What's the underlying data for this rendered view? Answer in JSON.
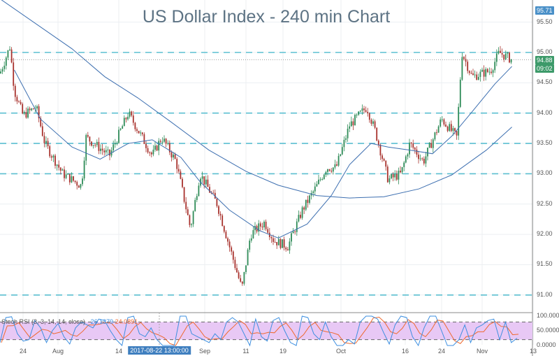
{
  "chart_data": [
    {
      "type": "candlestick",
      "title": "US Dollar Index - 240 min Chart",
      "ylim": [
        90.8,
        95.87
      ],
      "y_ticks": [
        "95.50",
        "95.00",
        "94.50",
        "94.00",
        "93.50",
        "93.00",
        "92.50",
        "92.00",
        "91.50",
        "91.00"
      ],
      "x_ticks": [
        {
          "label": "24",
          "date": "2017-07-24"
        },
        {
          "label": "Aug",
          "date": "2017-08-01"
        },
        {
          "label": "14",
          "date": "2017-08-14"
        },
        {
          "label": "Sep",
          "date": "2017-09-01"
        },
        {
          "label": "11",
          "date": "2017-09-11"
        },
        {
          "label": "19",
          "date": "2017-09-19"
        },
        {
          "label": "Oct",
          "date": "2017-10-01"
        },
        {
          "label": "16",
          "date": "2017-10-16"
        },
        {
          "label": "24",
          "date": "2017-10-24"
        },
        {
          "label": "Nov",
          "date": "2017-11-01"
        },
        {
          "label": "13",
          "date": "2017-11-13"
        }
      ],
      "crosshair_label": "2017-08-22 13:00:00",
      "horizontal_levels": [
        95.0,
        94.0,
        93.5,
        93.0,
        91.0
      ],
      "last_price": "94.88",
      "countdown": "09:02",
      "high_marker": "95.71",
      "price_path": [
        [
          "2017-07-19",
          94.71
        ],
        [
          "2017-07-21",
          95.1
        ],
        [
          "2017-07-22",
          94.37
        ],
        [
          "2017-07-24",
          93.96
        ],
        [
          "2017-07-27",
          94.1
        ],
        [
          "2017-07-29",
          93.5
        ],
        [
          "2017-08-02",
          93.0
        ],
        [
          "2017-08-06",
          92.8
        ],
        [
          "2017-08-07",
          93.6
        ],
        [
          "2017-08-12",
          93.3
        ],
        [
          "2017-08-16",
          94.0
        ],
        [
          "2017-08-21",
          93.3
        ],
        [
          "2017-08-23",
          93.6
        ],
        [
          "2017-08-26",
          93.2
        ],
        [
          "2017-08-29",
          92.1
        ],
        [
          "2017-08-31",
          93.0
        ],
        [
          "2017-09-04",
          92.5
        ],
        [
          "2017-09-10",
          91.1
        ],
        [
          "2017-09-12",
          92.0
        ],
        [
          "2017-09-15",
          92.2
        ],
        [
          "2017-09-17",
          91.9
        ],
        [
          "2017-09-20",
          91.8
        ],
        [
          "2017-09-23",
          92.4
        ],
        [
          "2017-09-26",
          92.8
        ],
        [
          "2017-09-28",
          93.1
        ],
        [
          "2017-09-30",
          93.1
        ],
        [
          "2017-10-03",
          93.8
        ],
        [
          "2017-10-07",
          94.1
        ],
        [
          "2017-10-09",
          93.7
        ],
        [
          "2017-10-12",
          92.9
        ],
        [
          "2017-10-15",
          93.0
        ],
        [
          "2017-10-17",
          93.5
        ],
        [
          "2017-10-20",
          93.2
        ],
        [
          "2017-10-24",
          93.9
        ],
        [
          "2017-10-27",
          93.6
        ],
        [
          "2017-10-28",
          95.0
        ],
        [
          "2017-10-30",
          94.6
        ],
        [
          "2017-11-03",
          94.7
        ],
        [
          "2017-11-05",
          95.0
        ],
        [
          "2017-11-08",
          94.88
        ]
      ],
      "series": [
        {
          "type": "line",
          "color": "#3d6fb0",
          "values": [
            [
              "2017-07-19",
              95.87
            ],
            [
              "2017-08-04",
              95.06
            ],
            [
              "2017-08-11",
              94.6
            ],
            [
              "2017-08-18",
              94.25
            ],
            [
              "2017-08-25",
              93.85
            ],
            [
              "2017-09-02",
              93.39
            ],
            [
              "2017-09-11",
              93.04
            ],
            [
              "2017-09-18",
              92.81
            ],
            [
              "2017-09-26",
              92.64
            ],
            [
              "2017-10-03",
              92.6
            ],
            [
              "2017-10-11",
              92.62
            ],
            [
              "2017-10-19",
              92.75
            ],
            [
              "2017-10-26",
              92.98
            ],
            [
              "2017-11-02",
              93.39
            ],
            [
              "2017-11-08",
              93.77
            ]
          ]
        },
        {
          "type": "line",
          "color": "#3d6fb0",
          "values": [
            [
              "2017-07-22",
              94.71
            ],
            [
              "2017-07-28",
              93.9
            ],
            [
              "2017-08-04",
              93.44
            ],
            [
              "2017-08-10",
              93.24
            ],
            [
              "2017-08-16",
              93.5
            ],
            [
              "2017-08-21",
              93.56
            ],
            [
              "2017-08-27",
              93.27
            ],
            [
              "2017-08-31",
              92.87
            ],
            [
              "2017-09-07",
              92.4
            ],
            [
              "2017-09-14",
              92.06
            ],
            [
              "2017-09-18",
              91.94
            ],
            [
              "2017-09-24",
              92.17
            ],
            [
              "2017-09-29",
              92.64
            ],
            [
              "2017-10-03",
              93.15
            ],
            [
              "2017-10-08",
              93.5
            ],
            [
              "2017-10-12",
              93.44
            ],
            [
              "2017-10-17",
              93.39
            ],
            [
              "2017-10-22",
              93.33
            ],
            [
              "2017-10-26",
              93.62
            ],
            [
              "2017-10-30",
              94.02
            ],
            [
              "2017-11-04",
              94.48
            ],
            [
              "2017-11-08",
              94.77
            ]
          ]
        }
      ],
      "colors": {
        "up": "#2e8b57",
        "down": "#a8322d",
        "level": "#5bbfd0",
        "title": "#5d7384",
        "badge_high": "#4a90c8",
        "badge_last": "#3d9a6a"
      }
    },
    {
      "type": "line",
      "name": "Stoch RSI (3, 3, 14, 14, close)",
      "k_value": "26.1379",
      "d_value": "24.0891",
      "y_ticks": [
        "100.0000",
        "50.0000",
        "0.0000"
      ],
      "ylim": [
        0,
        100
      ],
      "bands": [
        20,
        80
      ],
      "k": [
        10,
        95,
        98,
        40,
        15,
        20,
        85,
        60,
        10,
        50,
        75,
        30,
        5,
        60,
        80,
        70,
        60,
        90,
        85,
        50,
        20,
        0,
        95,
        100,
        40,
        30,
        60,
        20,
        0,
        0,
        0,
        100,
        100,
        40,
        30,
        20,
        10,
        40,
        20,
        80,
        95,
        80,
        40,
        0,
        90,
        30,
        15,
        85,
        95,
        50,
        10,
        0,
        100,
        95,
        40,
        20,
        80,
        30,
        0,
        0,
        20,
        5,
        80,
        100,
        100,
        90,
        45,
        5,
        70,
        100,
        95,
        30,
        0,
        60,
        100,
        100,
        50,
        0,
        0,
        20,
        70,
        10,
        60,
        70,
        85,
        90,
        20,
        80,
        10,
        25
      ]
    }
  ]
}
